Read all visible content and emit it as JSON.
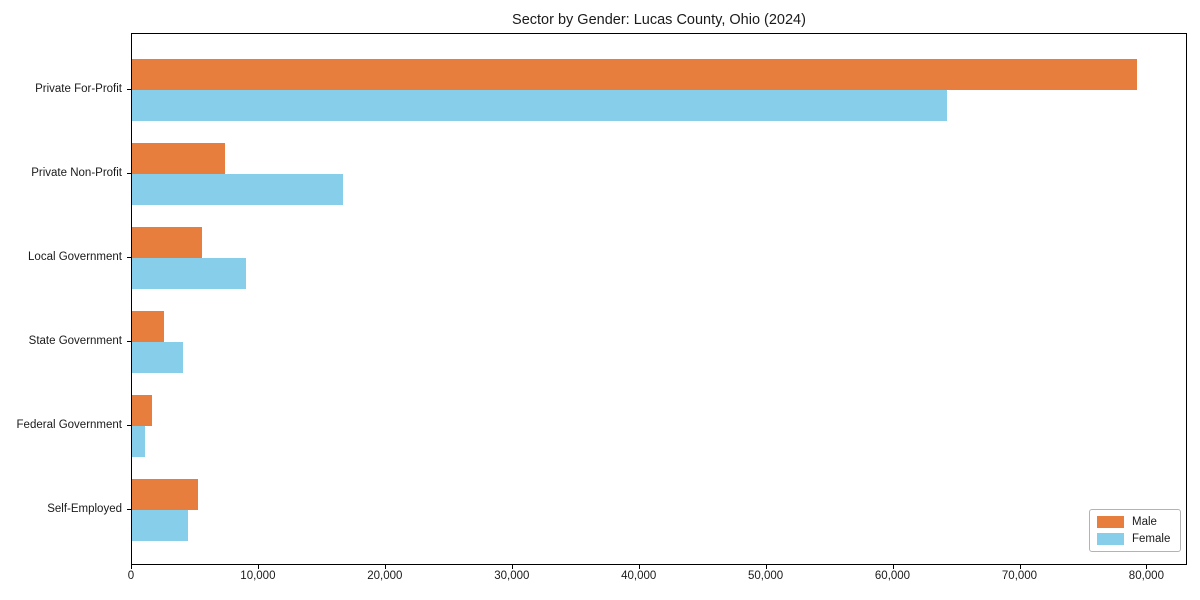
{
  "chart_data": {
    "type": "bar",
    "orientation": "horizontal",
    "title": "Sector by Gender: Lucas County, Ohio (2024)",
    "categories": [
      "Private For-Profit",
      "Private Non-Profit",
      "Local Government",
      "State Government",
      "Federal Government",
      "Self-Employed"
    ],
    "series": [
      {
        "name": "Male",
        "color": "#E87E3E",
        "values": [
          79200,
          7300,
          5500,
          2500,
          1600,
          5200
        ]
      },
      {
        "name": "Female",
        "color": "#87CEEB",
        "values": [
          64200,
          16600,
          9000,
          4000,
          1000,
          4400
        ]
      }
    ],
    "xlabel": "",
    "ylabel": "",
    "xlim": [
      0,
      83200
    ],
    "x_ticks": [
      0,
      10000,
      20000,
      30000,
      40000,
      50000,
      60000,
      70000,
      80000
    ],
    "x_tick_labels": [
      "0",
      "10,000",
      "20,000",
      "30,000",
      "40,000",
      "50,000",
      "60,000",
      "70,000",
      "80,000"
    ],
    "grid": false,
    "legend": {
      "position": "lower right",
      "entries": [
        "Male",
        "Female"
      ]
    },
    "colors": {
      "male": "#E87E3E",
      "female": "#87CEEB",
      "spine": "#000000",
      "text": "#1a1a1a",
      "background": "#ffffff"
    }
  }
}
